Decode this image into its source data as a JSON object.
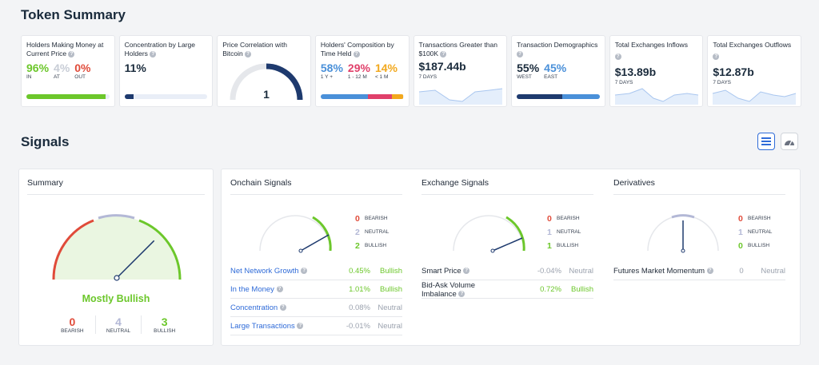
{
  "token_summary": {
    "title": "Token Summary",
    "cards": {
      "holders_money": {
        "title": "Holders Making Money at Current Price",
        "in_pct": "96%",
        "in_label": "IN",
        "at_pct": "4%",
        "at_label": "AT",
        "out_pct": "0%",
        "out_label": "OUT",
        "bar_fill": 0.96
      },
      "concentration": {
        "title": "Concentration by Large Holders",
        "value": "11%",
        "bar_fill": 0.11
      },
      "price_correlation": {
        "title": "Price Correlation with Bitcoin",
        "value": "1",
        "gauge_level": 1.0
      },
      "holders_composition": {
        "title": "Holders' Composition by Time Held",
        "p1": "58%",
        "l1": "1 Y +",
        "p2": "29%",
        "l2": "1 - 12 M",
        "p3": "14%",
        "l3": "< 1 M",
        "shares": [
          0.58,
          0.29,
          0.14
        ]
      },
      "tx_greater": {
        "title": "Transactions Greater than $100K",
        "value": "$187.44b",
        "period": "7 DAYS"
      },
      "tx_demographics": {
        "title": "Transaction Demographics",
        "p1": "55%",
        "l1": "WEST",
        "p2": "45%",
        "l2": "EAST",
        "shares": [
          0.55,
          0.45
        ]
      },
      "exchange_inflows": {
        "title": "Total Exchanges Inflows",
        "value": "$13.89b",
        "period": "7 DAYS"
      },
      "exchange_outflows": {
        "title": "Total Exchanges Outflows",
        "value": "$12.87b",
        "period": "7 DAYS"
      }
    }
  },
  "signals": {
    "title": "Signals",
    "summary": {
      "title": "Summary",
      "verdict": "Mostly Bullish",
      "bearish_count": "0",
      "bearish_label": "BEARISH",
      "neutral_count": "4",
      "neutral_label": "NEUTRAL",
      "bullish_count": "3",
      "bullish_label": "BULLISH",
      "needle_level": 0.75
    },
    "onchain": {
      "title": "Onchain Signals",
      "bearish": "0",
      "neutral": "2",
      "bullish": "2",
      "bearish_label": "BEARISH",
      "neutral_label": "NEUTRAL",
      "bullish_label": "BULLISH",
      "rows": [
        {
          "name": "Net Network Growth",
          "value": "0.45%",
          "label": "Bullish"
        },
        {
          "name": "In the Money",
          "value": "1.01%",
          "label": "Bullish"
        },
        {
          "name": "Concentration",
          "value": "0.08%",
          "label": "Neutral"
        },
        {
          "name": "Large Transactions",
          "value": "-0.01%",
          "label": "Neutral"
        }
      ]
    },
    "exchange": {
      "title": "Exchange Signals",
      "bearish": "0",
      "neutral": "1",
      "bullish": "1",
      "bearish_label": "BEARISH",
      "neutral_label": "NEUTRAL",
      "bullish_label": "BULLISH",
      "rows": [
        {
          "name": "Smart Price",
          "value": "-0.04%",
          "label": "Neutral"
        },
        {
          "name": "Bid-Ask Volume Imbalance",
          "value": "0.72%",
          "label": "Bullish"
        }
      ]
    },
    "derivatives": {
      "title": "Derivatives",
      "bearish": "0",
      "neutral": "1",
      "bullish": "0",
      "bearish_label": "BEARISH",
      "neutral_label": "NEUTRAL",
      "bullish_label": "BULLISH",
      "rows": [
        {
          "name": "Futures Market Momentum",
          "value": "0",
          "label": "Neutral"
        }
      ]
    }
  },
  "colors": {
    "green": "#6cc72b",
    "red": "#e04b3a",
    "blue": "#2f6bd8",
    "navy": "#1e3a6e",
    "orange": "#f2a81d",
    "pink": "#e0406a",
    "lightblue": "#4a90d9",
    "neutral": "#b3b8d6"
  },
  "icons": {
    "help": "question-mark-icon",
    "list_view": "list-icon",
    "gauge_view": "gauge-icon"
  }
}
